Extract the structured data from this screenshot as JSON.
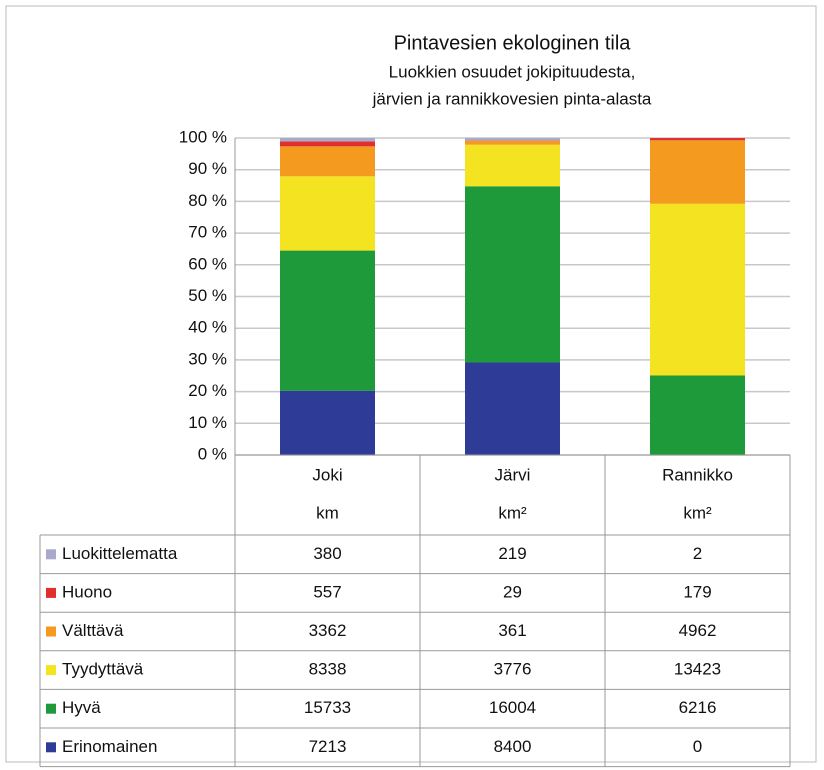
{
  "chart_data": {
    "type": "bar",
    "stacked": "percent",
    "title": "Pintavesien ekologinen tila",
    "subtitle": [
      "Luokkien osuudet jokipituudesta,",
      "järvien ja rannikkovesien pinta-alasta"
    ],
    "categories": [
      "Joki",
      "Järvi",
      "Rannikko"
    ],
    "units": [
      "km",
      "km²",
      "km²"
    ],
    "series": [
      {
        "name": "Luokittelematta",
        "color": "#a9a9c9",
        "values": [
          380,
          219,
          2
        ]
      },
      {
        "name": "Huono",
        "color": "#e0302e",
        "values": [
          557,
          29,
          179
        ]
      },
      {
        "name": "Välttävä",
        "color": "#f39a1f",
        "values": [
          3362,
          361,
          4962
        ]
      },
      {
        "name": "Tyydyttävä",
        "color": "#f3e320",
        "values": [
          8338,
          3776,
          13423
        ]
      },
      {
        "name": "Hyvä",
        "color": "#1f9a3b",
        "values": [
          15733,
          16004,
          6216
        ]
      },
      {
        "name": "Erinomainen",
        "color": "#2e3c98",
        "values": [
          7213,
          8400,
          0
        ]
      }
    ],
    "ylim": [
      0,
      100
    ],
    "yticks": [
      {
        "value": 0,
        "label": "0 %"
      },
      {
        "value": 10,
        "label": "10 %"
      },
      {
        "value": 20,
        "label": "20 %"
      },
      {
        "value": 30,
        "label": "30 %"
      },
      {
        "value": 40,
        "label": "40 %"
      },
      {
        "value": 50,
        "label": "50 %"
      },
      {
        "value": 60,
        "label": "60 %"
      },
      {
        "value": 70,
        "label": "70 %"
      },
      {
        "value": 80,
        "label": "80 %"
      },
      {
        "value": 90,
        "label": "90 %"
      },
      {
        "value": 100,
        "label": "100 %"
      }
    ],
    "grid": true
  }
}
